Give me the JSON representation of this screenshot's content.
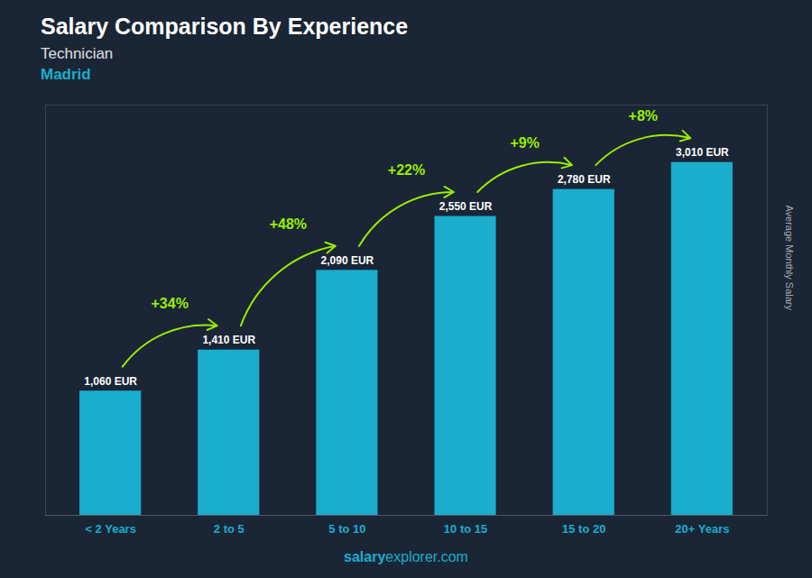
{
  "chart_data": {
    "type": "bar",
    "title": "Salary Comparison By Experience",
    "subtitle": [
      "Technician",
      "Madrid"
    ],
    "ylabel": "Average Monthly Salary",
    "categories": [
      "< 2 Years",
      "2 to 5",
      "5 to 10",
      "10 to 15",
      "15 to 20",
      "20+ Years"
    ],
    "values": [
      1060,
      1410,
      2090,
      2550,
      2780,
      3010
    ],
    "value_labels": [
      "1,060 EUR",
      "1,410 EUR",
      "2,090 EUR",
      "2,550 EUR",
      "2,780 EUR",
      "3,010 EUR"
    ],
    "data_labels": true,
    "color": "#1AADCE",
    "ylim": [
      0,
      3500
    ],
    "tick_labels": "x",
    "grid": false,
    "annotations": [
      {
        "text": "+34%",
        "color": "#99EE00"
      },
      {
        "text": "+48%",
        "color": "#99EE00"
      },
      {
        "text": "+22%",
        "color": "#99EE00"
      },
      {
        "text": "+9%",
        "color": "#99EE00"
      },
      {
        "text": "+8%",
        "color": "#99EE00"
      }
    ],
    "caption": [
      "salary",
      "explorer.com"
    ]
  }
}
